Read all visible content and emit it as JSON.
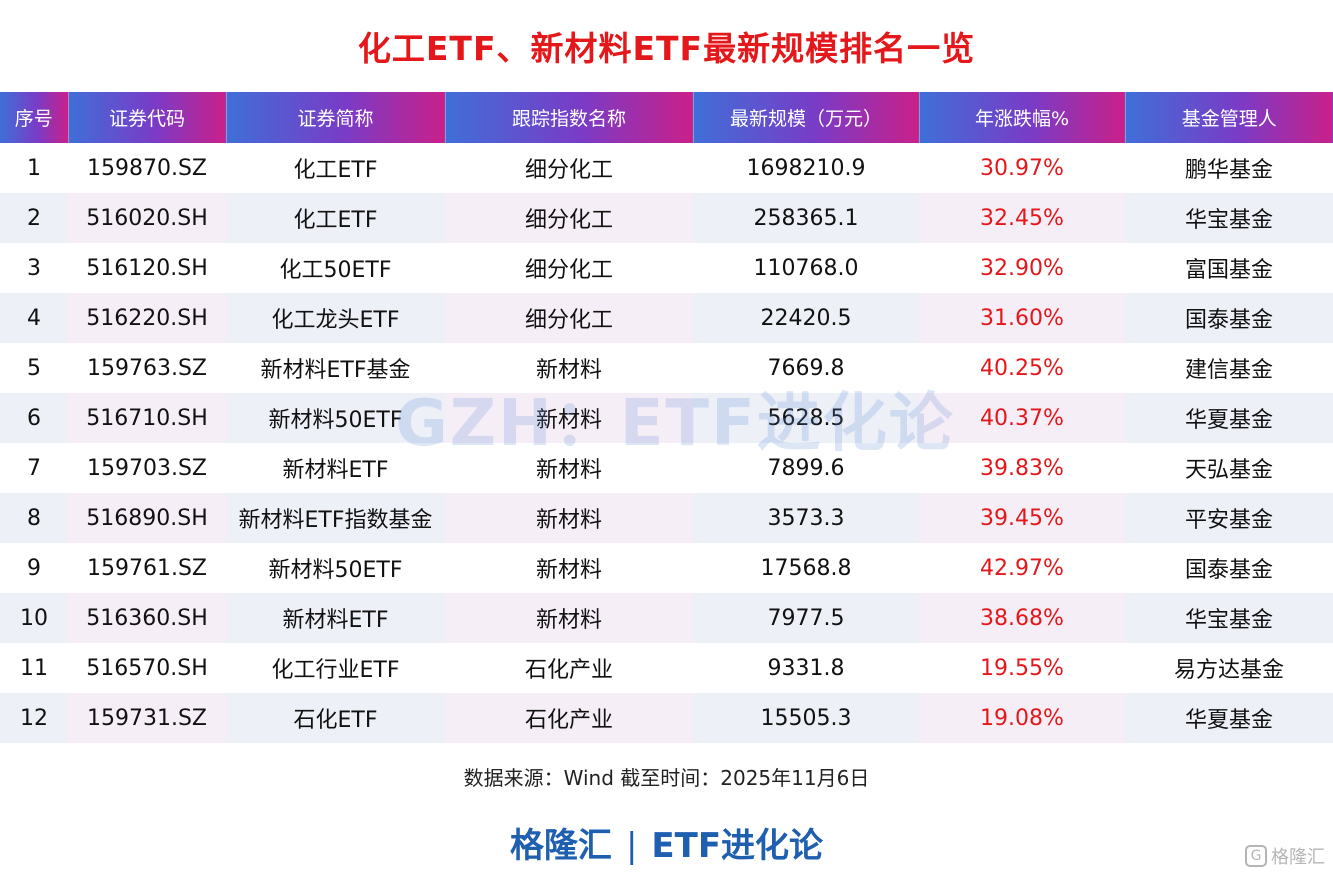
{
  "title": "化工ETF、新材料ETF最新规模排名一览",
  "table": {
    "headers": [
      "序号",
      "证券代码",
      "证券简称",
      "跟踪指数名称",
      "最新规模（万元）",
      "年涨跌幅%",
      "基金管理人"
    ],
    "rows": [
      [
        "1",
        "159870.SZ",
        "化工ETF",
        "细分化工",
        "1698210.9",
        "30.97%",
        "鹏华基金"
      ],
      [
        "2",
        "516020.SH",
        "化工ETF",
        "细分化工",
        "258365.1",
        "32.45%",
        "华宝基金"
      ],
      [
        "3",
        "516120.SH",
        "化工50ETF",
        "细分化工",
        "110768.0",
        "32.90%",
        "富国基金"
      ],
      [
        "4",
        "516220.SH",
        "化工龙头ETF",
        "细分化工",
        "22420.5",
        "31.60%",
        "国泰基金"
      ],
      [
        "5",
        "159763.SZ",
        "新材料ETF基金",
        "新材料",
        "7669.8",
        "40.25%",
        "建信基金"
      ],
      [
        "6",
        "516710.SH",
        "新材料50ETF",
        "新材料",
        "5628.5",
        "40.37%",
        "华夏基金"
      ],
      [
        "7",
        "159703.SZ",
        "新材料ETF",
        "新材料",
        "7899.6",
        "39.83%",
        "天弘基金"
      ],
      [
        "8",
        "516890.SH",
        "新材料ETF指数基金",
        "新材料",
        "3573.3",
        "39.45%",
        "平安基金"
      ],
      [
        "9",
        "159761.SZ",
        "新材料50ETF",
        "新材料",
        "17568.8",
        "42.97%",
        "国泰基金"
      ],
      [
        "10",
        "516360.SH",
        "新材料ETF",
        "新材料",
        "7977.5",
        "38.68%",
        "华宝基金"
      ],
      [
        "11",
        "516570.SH",
        "化工行业ETF",
        "石化产业",
        "9331.8",
        "19.55%",
        "易方达基金"
      ],
      [
        "12",
        "159731.SZ",
        "石化ETF",
        "石化产业",
        "15505.3",
        "19.08%",
        "华夏基金"
      ]
    ]
  },
  "watermark": "GZH：ETF进化论",
  "source": "数据来源：Wind 截至时间：2025年11月6日",
  "footer": {
    "left": "格隆汇",
    "separator": "|",
    "right": "ETF进化论"
  },
  "corner_mark": {
    "logo_glyph": "G",
    "text": "格隆汇"
  },
  "colors": {
    "title": "#e4171b",
    "change_text": "#e4171b",
    "footer": "#1f5fb0"
  }
}
